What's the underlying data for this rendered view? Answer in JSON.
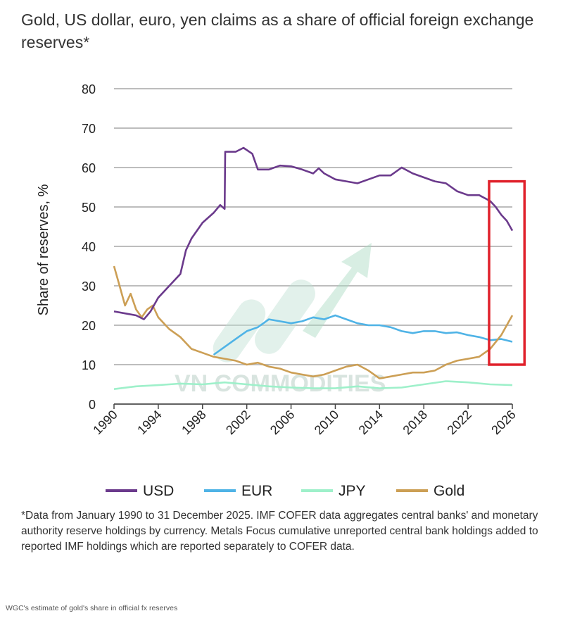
{
  "chart_data": {
    "type": "line",
    "title": "Gold, US dollar, euro, yen claims as a share of official foreign exchange reserves*",
    "ylabel": "Share of reserves, %",
    "xlabel": "",
    "ylim": [
      0,
      80
    ],
    "xlim": [
      1990,
      2026
    ],
    "yticks": [
      "0",
      "10",
      "20",
      "30",
      "40",
      "50",
      "60",
      "70",
      "80"
    ],
    "xticks": [
      "1990",
      "1994",
      "1998",
      "2002",
      "2006",
      "2010",
      "2014",
      "2018",
      "2022",
      "2026"
    ],
    "grid": true,
    "legend_position": "bottom",
    "series": [
      {
        "name": "USD",
        "color": "#6b3a8c",
        "x": [
          1990,
          1991,
          1992,
          1992.7,
          1993.3,
          1994,
          1995,
          1996,
          1996.5,
          1997,
          1998,
          1999,
          1999.6,
          2000,
          2000.05,
          2001,
          2001.7,
          2002.5,
          2003,
          2004,
          2005,
          2006,
          2007,
          2008,
          2008.5,
          2009,
          2010,
          2011,
          2012,
          2013,
          2014,
          2015,
          2016,
          2017,
          2018,
          2019,
          2020,
          2021,
          2022,
          2023,
          2024,
          2024.5,
          2025,
          2025.5,
          2026
        ],
        "y": [
          23.5,
          23,
          22.5,
          21.5,
          23.5,
          27,
          30,
          33,
          39,
          42,
          46,
          48.5,
          50.5,
          49.5,
          64,
          64,
          65,
          63.5,
          59.5,
          59.5,
          60.5,
          60.3,
          59.5,
          58.5,
          59.8,
          58.5,
          57,
          56.5,
          56,
          57,
          58,
          58,
          60,
          58.5,
          57.5,
          56.5,
          56,
          54,
          53,
          53,
          51.5,
          50,
          48,
          46.5,
          44
        ]
      },
      {
        "name": "EUR",
        "color": "#4fb3e6",
        "x": [
          1999,
          2000,
          2001,
          2002,
          2003,
          2004,
          2005,
          2006,
          2007,
          2008,
          2009,
          2010,
          2011,
          2012,
          2013,
          2014,
          2015,
          2016,
          2017,
          2018,
          2019,
          2020,
          2021,
          2022,
          2023,
          2024,
          2025,
          2026
        ],
        "y": [
          12.5,
          14.5,
          16.5,
          18.5,
          19.5,
          21.5,
          21,
          20.5,
          21,
          22,
          21.5,
          22.5,
          21.5,
          20.5,
          20,
          20,
          19.5,
          18.5,
          18,
          18.5,
          18.5,
          18,
          18.2,
          17.5,
          17,
          16.2,
          16.5,
          15.8
        ]
      },
      {
        "name": "JPY",
        "color": "#9ef0ca",
        "x": [
          1990,
          1992,
          1994,
          1996,
          1998,
          2000,
          2002,
          2004,
          2006,
          2008,
          2010,
          2012,
          2014,
          2016,
          2018,
          2020,
          2022,
          2024,
          2026
        ],
        "y": [
          3.8,
          4.5,
          4.8,
          5.2,
          5,
          5.5,
          5,
          4.5,
          4.2,
          4,
          4,
          4.5,
          4,
          4.2,
          5,
          5.8,
          5.5,
          5,
          4.8
        ]
      },
      {
        "name": "Gold",
        "color": "#cc9f55",
        "x": [
          1990,
          1990.5,
          1991,
          1991.5,
          1992,
          1992.5,
          1993,
          1993.5,
          1994,
          1995,
          1996,
          1997,
          1998,
          1999,
          2000,
          2001,
          2002,
          2003,
          2004,
          2005,
          2006,
          2007,
          2008,
          2009,
          2010,
          2011,
          2012,
          2013,
          2014,
          2015,
          2016,
          2017,
          2018,
          2019,
          2020,
          2021,
          2022,
          2023,
          2024,
          2025,
          2025.5,
          2026
        ],
        "y": [
          35,
          30,
          25,
          28,
          24,
          22,
          24,
          25,
          22,
          19,
          17,
          14,
          13,
          12,
          11.5,
          11,
          10,
          10.5,
          9.5,
          9,
          8,
          7.5,
          7,
          7.5,
          8.5,
          9.5,
          10,
          8.5,
          6.5,
          7,
          7.5,
          8,
          8,
          8.5,
          10,
          11,
          11.5,
          12,
          14,
          17.5,
          20,
          22.5
        ]
      }
    ]
  },
  "highlight_box": {
    "color": "#e0202a",
    "x_start": 2023.9,
    "x_end": 2027.1,
    "y_bottom": 10,
    "y_top": 56.5
  },
  "watermark": {
    "text": "VN COMMODITIES"
  },
  "footnote": "*Data from January 1990 to 31 December 2025. IMF COFER data aggregates central banks' and monetary authority reserve holdings by currency. Metals Focus cumulative unreported central bank holdings added to reported IMF holdings which are reported separately to COFER data.",
  "caption": "WGC's estimate of gold's share in official fx reserves"
}
